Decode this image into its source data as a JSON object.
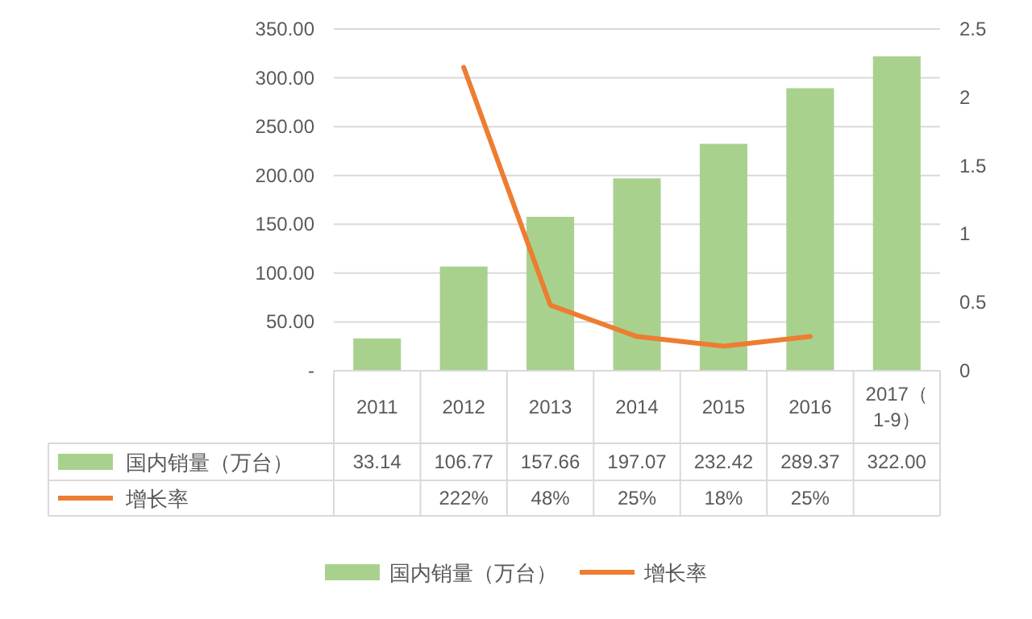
{
  "chart_data": {
    "type": "bar",
    "categories": [
      "2011",
      "2012",
      "2013",
      "2014",
      "2015",
      "2016",
      "2017（1-9）"
    ],
    "series": [
      {
        "name": "国内销量（万台）",
        "color": "#a9d18e",
        "values": [
          33.14,
          106.77,
          157.66,
          197.07,
          232.42,
          289.37,
          322.0
        ],
        "value_labels": [
          "33.14",
          "106.77",
          "157.66",
          "197.07",
          "232.42",
          "289.37",
          "322.00"
        ]
      },
      {
        "name": "增长率",
        "type": "line",
        "axis": "y2",
        "color": "#ed7d31",
        "values": [
          null,
          2.22,
          0.48,
          0.25,
          0.18,
          0.25,
          null
        ],
        "value_labels": [
          null,
          "222%",
          "48%",
          "25%",
          "18%",
          "25%",
          null
        ]
      }
    ],
    "ylim": [
      0,
      350
    ],
    "yticks": [
      {
        "value": 0,
        "label": "-"
      },
      {
        "value": 50,
        "label": "50.00"
      },
      {
        "value": 100,
        "label": "100.00"
      },
      {
        "value": 150,
        "label": "150.00"
      },
      {
        "value": 200,
        "label": "200.00"
      },
      {
        "value": 250,
        "label": "250.00"
      },
      {
        "value": 300,
        "label": "300.00"
      },
      {
        "value": 350,
        "label": "350.00"
      }
    ],
    "y2lim": [
      0,
      2.5
    ],
    "y2ticks": [
      0,
      0.5,
      1,
      1.5,
      2,
      2.5
    ],
    "grid": "y",
    "legend": "bottom"
  }
}
